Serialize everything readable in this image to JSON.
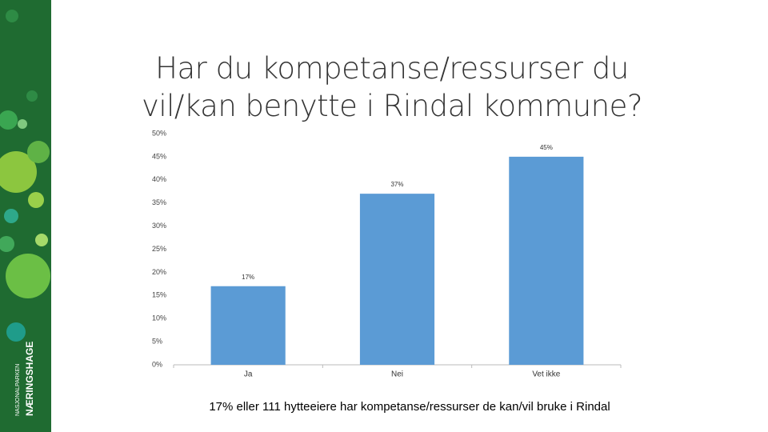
{
  "sidebar": {
    "brand_small": "NASJONALPARKEN",
    "brand": "NÆRINGSHAGE"
  },
  "chart_data": {
    "type": "bar",
    "title": "Har du kompetanse/ressurser du vil/kan benytte i Rindal kommune?",
    "categories": [
      "Ja",
      "Nei",
      "Vet ikke"
    ],
    "values": [
      17,
      37,
      45
    ],
    "value_labels": [
      "17%",
      "37%",
      "45%"
    ],
    "color": "#5b9bd5",
    "ylim": [
      0,
      50
    ],
    "yticks": [
      {
        "value": 0,
        "label": "0%"
      },
      {
        "value": 5,
        "label": "5%"
      },
      {
        "value": 10,
        "label": "10%"
      },
      {
        "value": 15,
        "label": "15%"
      },
      {
        "value": 20,
        "label": "20%"
      },
      {
        "value": 25,
        "label": "25%"
      },
      {
        "value": 30,
        "label": "30%"
      },
      {
        "value": 35,
        "label": "35%"
      },
      {
        "value": 40,
        "label": "40%"
      },
      {
        "value": 45,
        "label": "45%"
      },
      {
        "value": 50,
        "label": "50%"
      }
    ],
    "grid": false,
    "footnote": "17% eller 111 hytteeiere har kompetanse/ressurser de kan/vil bruke i Rindal"
  }
}
